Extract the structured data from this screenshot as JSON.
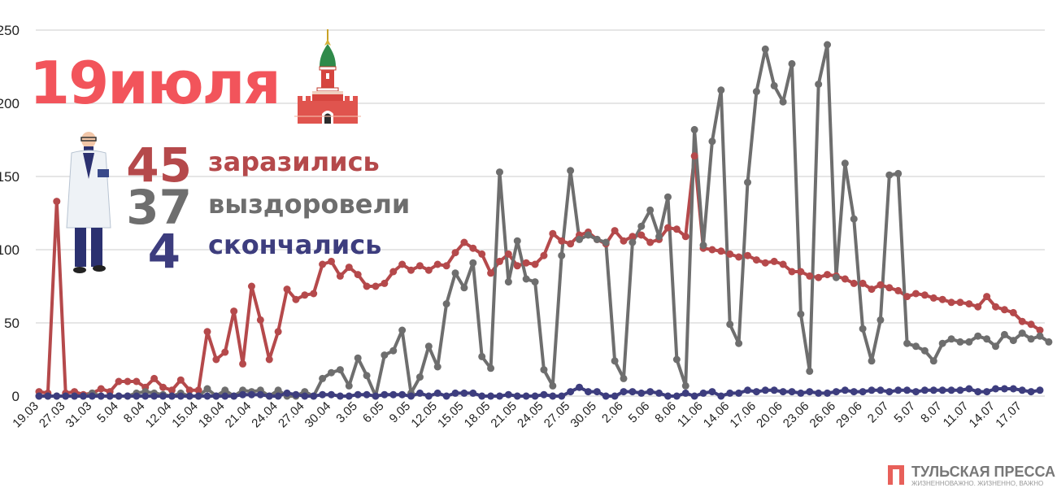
{
  "header": {
    "date_label": "19июля"
  },
  "stats": [
    {
      "value": "45",
      "label": "заразились",
      "color": "#b5494b"
    },
    {
      "value": "37",
      "label": "выздоровели",
      "color": "#6e6e6e"
    },
    {
      "value": "4",
      "label": "скончались",
      "color": "#3d3d7e"
    }
  ],
  "branding": {
    "name": "ТУЛЬСКАЯ ПРЕССА",
    "slogan": "ЖИЗНЕННОВАЖНО. ЖИЗНЕННО, ВАЖНО"
  },
  "colors": {
    "date": "#f2545b",
    "infected": "#b5494b",
    "recovered": "#6e6e6e",
    "deaths": "#3d3d7e",
    "grid": "#cccccc"
  },
  "icons": [
    "kremlin-tower-icon",
    "doctor-figure-icon",
    "tulskaya-pressa-logo-icon"
  ],
  "chart_data": {
    "type": "line",
    "ylim": [
      0,
      250
    ],
    "yticks": [
      0,
      50,
      100,
      150,
      200,
      250
    ],
    "grid": true,
    "x_tick_labels": [
      "19.03",
      "27.03",
      "31.03",
      "5.04",
      "8.04",
      "12.04",
      "15.04",
      "18.04",
      "21.04",
      "24.04",
      "27.04",
      "30.04",
      "3.05",
      "6.05",
      "9.05",
      "12.05",
      "15.05",
      "18.05",
      "21.05",
      "24.05",
      "27.05",
      "30.05",
      "2.06",
      "5.06",
      "8.06",
      "11.06",
      "14.06",
      "17.06",
      "20.06",
      "23.06",
      "26.06",
      "29.06",
      "2.07",
      "5.07",
      "8.07",
      "11.07",
      "14.07",
      "17.07"
    ],
    "series": [
      {
        "key": "infected",
        "values": [
          3,
          2,
          133,
          2,
          3,
          1,
          2,
          5,
          3,
          10,
          10,
          10,
          6,
          12,
          6,
          4,
          11,
          4,
          4,
          44,
          25,
          30,
          58,
          22,
          75,
          52,
          25,
          44,
          73,
          66,
          69,
          70,
          90,
          92,
          82,
          88,
          83,
          75,
          75,
          77,
          85,
          90,
          86,
          89,
          86,
          90,
          89,
          98,
          105,
          101,
          97,
          84,
          92,
          97,
          89,
          91,
          90,
          96,
          111,
          106,
          104,
          110,
          112,
          107,
          104,
          113,
          106,
          109,
          110,
          105,
          107,
          115,
          114,
          109,
          164,
          101,
          100,
          99,
          97,
          95,
          96,
          93,
          91,
          92,
          90,
          85,
          85,
          82,
          81,
          83,
          82,
          80,
          77,
          77,
          73,
          76,
          74,
          72,
          68,
          70,
          69,
          67,
          66,
          64,
          64,
          63,
          61,
          68,
          61,
          59,
          57,
          51,
          49,
          45
        ]
      },
      {
        "key": "recovered",
        "values": [
          0,
          0,
          0,
          0,
          0,
          0,
          2,
          0,
          0,
          0,
          0,
          2,
          3,
          2,
          1,
          0,
          2,
          0,
          0,
          5,
          0,
          4,
          0,
          4,
          3,
          4,
          0,
          4,
          0,
          0,
          3,
          0,
          12,
          16,
          18,
          7,
          26,
          14,
          0,
          28,
          31,
          45,
          2,
          13,
          34,
          20,
          63,
          84,
          74,
          91,
          27,
          19,
          153,
          78,
          106,
          80,
          78,
          18,
          7,
          96,
          154,
          107,
          110,
          107,
          105,
          24,
          12,
          105,
          116,
          127,
          109,
          136,
          25,
          7,
          182,
          103,
          174,
          209,
          49,
          36,
          146,
          208,
          237,
          212,
          201,
          227,
          56,
          17,
          213,
          240,
          81,
          159,
          121,
          46,
          24,
          52,
          151,
          152,
          36,
          34,
          31,
          24,
          36,
          39,
          37,
          37,
          41,
          39,
          34,
          42,
          38,
          43,
          39,
          41,
          37
        ]
      },
      {
        "key": "deaths",
        "values": [
          0,
          0,
          0,
          0,
          0,
          0,
          0,
          0,
          0,
          0,
          0,
          0,
          0,
          0,
          0,
          0,
          0,
          0,
          0,
          0,
          0,
          0,
          0,
          1,
          1,
          1,
          0,
          0,
          2,
          1,
          0,
          0,
          1,
          1,
          0,
          0,
          1,
          1,
          0,
          1,
          1,
          1,
          0,
          2,
          0,
          2,
          0,
          2,
          2,
          2,
          0,
          0,
          0,
          1,
          0,
          0,
          0,
          1,
          0,
          0,
          3,
          6,
          3,
          3,
          0,
          0,
          3,
          3,
          2,
          3,
          2,
          0,
          0,
          2,
          0,
          2,
          3,
          0,
          2,
          2,
          4,
          3,
          4,
          4,
          3,
          3,
          2,
          3,
          2,
          2,
          3,
          4,
          3,
          3,
          4,
          4,
          3,
          4,
          4,
          3,
          4,
          4,
          4,
          4,
          4,
          5,
          3,
          3,
          5,
          5,
          5,
          4,
          3,
          4
        ]
      }
    ]
  }
}
